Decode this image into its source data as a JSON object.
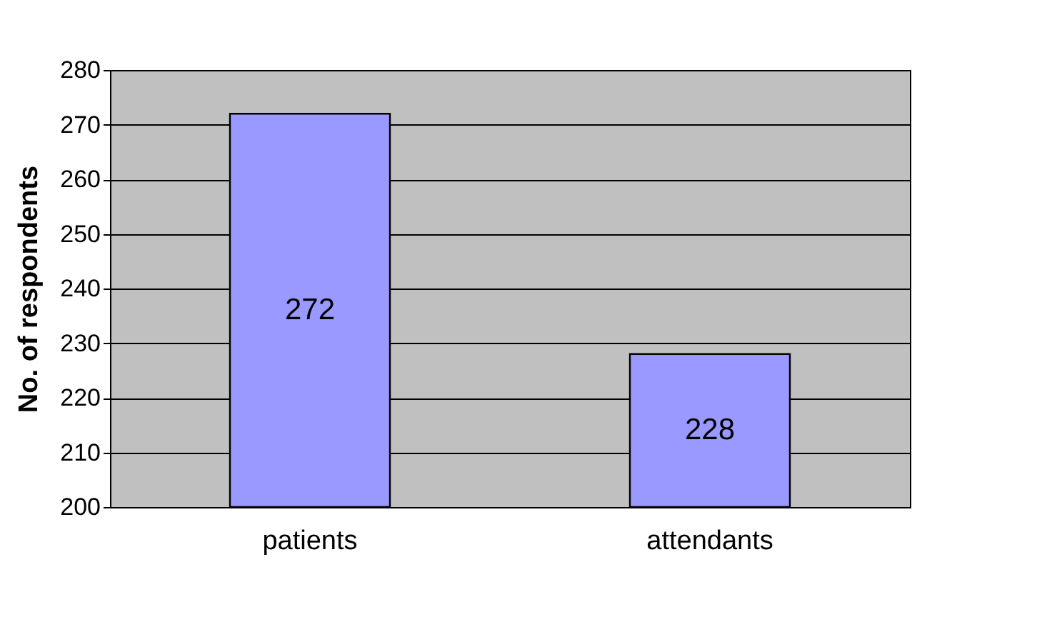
{
  "chart_data": {
    "type": "bar",
    "ylabel": "No. of respondents",
    "categories": [
      "patients",
      "attendants"
    ],
    "values": [
      272,
      228
    ],
    "color": "#9999ff",
    "ylim": [
      200,
      280
    ],
    "yticks": [
      200,
      210,
      220,
      230,
      240,
      250,
      260,
      270,
      280
    ],
    "grid": "y",
    "data_labels": true
  }
}
